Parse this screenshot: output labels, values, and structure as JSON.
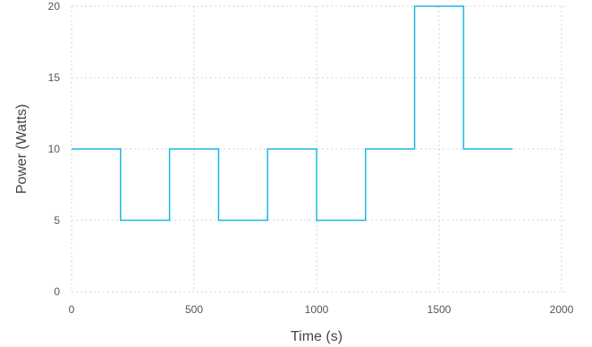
{
  "chart_data": {
    "type": "line",
    "step": "post",
    "xlabel": "Time (s)",
    "ylabel": "Power (Watts)",
    "xlim": [
      0,
      2000
    ],
    "ylim": [
      0,
      20
    ],
    "xticks": [
      0,
      500,
      1000,
      1500,
      2000
    ],
    "yticks": [
      0,
      5,
      10,
      15,
      20
    ],
    "grid": true,
    "series": [
      {
        "color": "#1ab8e0",
        "x": [
          0,
          200,
          400,
          600,
          800,
          1000,
          1200,
          1400,
          1600,
          1800
        ],
        "y": [
          10,
          5,
          10,
          5,
          10,
          5,
          10,
          20,
          10,
          10
        ]
      }
    ]
  }
}
